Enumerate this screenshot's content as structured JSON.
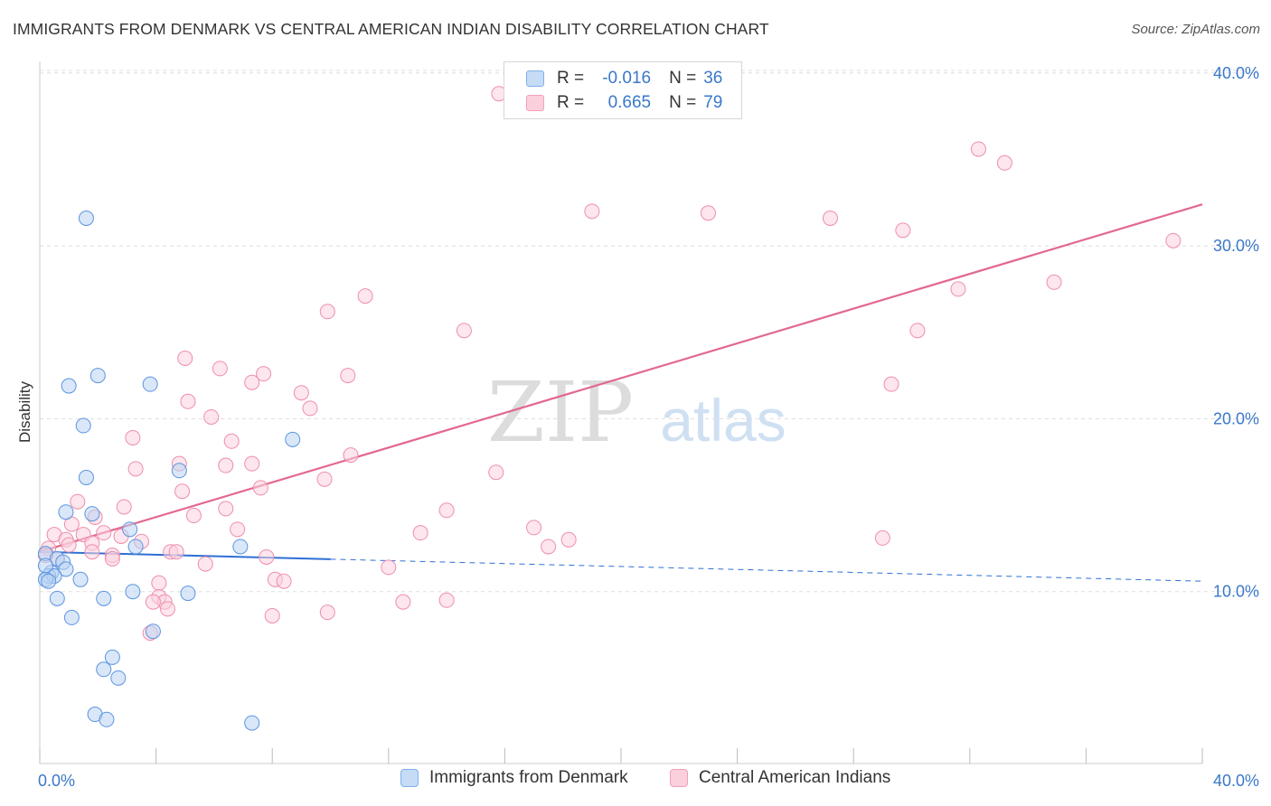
{
  "title": "IMMIGRANTS FROM DENMARK VS CENTRAL AMERICAN INDIAN DISABILITY CORRELATION CHART",
  "source": "Source: ZipAtlas.com",
  "watermark": {
    "zip": "ZIP",
    "atlas": "atlas"
  },
  "legend": {
    "r_label": "R =",
    "n_label": "N =",
    "rows": [
      {
        "r": "-0.016",
        "n": "36",
        "color": "#7fb0ea",
        "fill": "#c5dbf6"
      },
      {
        "r": "0.665",
        "n": "79",
        "color": "#f0a0b8",
        "fill": "#fbd0dc"
      }
    ]
  },
  "bottom_legend": {
    "series1": "Immigrants from Denmark",
    "series2": "Central American Indians"
  },
  "chart_data": {
    "type": "scatter",
    "title": "IMMIGRANTS FROM DENMARK VS CENTRAL AMERICAN INDIAN DISABILITY CORRELATION CHART",
    "xlabel": "",
    "ylabel": "Disability",
    "xlim": [
      0,
      40
    ],
    "ylim": [
      0,
      40
    ],
    "x_tick_labels": [
      "0.0%",
      "40.0%"
    ],
    "y_ticks": [
      10,
      20,
      30,
      40
    ],
    "y_tick_labels": [
      "10.0%",
      "20.0%",
      "30.0%",
      "40.0%"
    ],
    "grid": true,
    "legend_position": "top-center",
    "series": [
      {
        "name": "Immigrants from Denmark",
        "color": "#5b95e0",
        "fill": "#b9d3f3",
        "line_color": "#2e6fd4",
        "trend": {
          "x_start": 0,
          "x_solid_end": 10,
          "x_end": 40,
          "y_start": 12.3,
          "y_end": 10.6
        },
        "points": [
          [
            1.6,
            31.6
          ],
          [
            2.0,
            22.5
          ],
          [
            1.0,
            21.9
          ],
          [
            3.8,
            22.0
          ],
          [
            1.5,
            19.6
          ],
          [
            8.7,
            18.8
          ],
          [
            1.6,
            16.6
          ],
          [
            4.8,
            17.0
          ],
          [
            0.9,
            14.6
          ],
          [
            1.8,
            14.5
          ],
          [
            3.1,
            13.6
          ],
          [
            3.3,
            12.6
          ],
          [
            6.9,
            12.6
          ],
          [
            0.2,
            12.2
          ],
          [
            0.6,
            11.9
          ],
          [
            0.8,
            11.7
          ],
          [
            0.9,
            11.3
          ],
          [
            0.4,
            11.1
          ],
          [
            0.3,
            10.9
          ],
          [
            0.5,
            10.9
          ],
          [
            0.2,
            10.7
          ],
          [
            1.4,
            10.7
          ],
          [
            0.3,
            10.6
          ],
          [
            3.2,
            10.0
          ],
          [
            5.1,
            9.9
          ],
          [
            0.6,
            9.6
          ],
          [
            2.2,
            9.6
          ],
          [
            1.1,
            8.5
          ],
          [
            3.9,
            7.7
          ],
          [
            2.5,
            6.2
          ],
          [
            2.2,
            5.5
          ],
          [
            2.7,
            5.0
          ],
          [
            1.9,
            2.9
          ],
          [
            2.3,
            2.6
          ],
          [
            7.3,
            2.4
          ],
          [
            0.2,
            11.5
          ]
        ]
      },
      {
        "name": "Central American Indians",
        "color": "#ee8eac",
        "fill": "#fbd2de",
        "line_color": "#e2688f",
        "trend": {
          "x_start": 0,
          "x_end": 40,
          "y_start": 12.3,
          "y_end": 32.4
        },
        "points": [
          [
            15.8,
            38.8
          ],
          [
            32.3,
            35.6
          ],
          [
            33.2,
            34.8
          ],
          [
            19.0,
            32.0
          ],
          [
            23.0,
            31.9
          ],
          [
            27.2,
            31.6
          ],
          [
            29.7,
            30.9
          ],
          [
            39.0,
            30.3
          ],
          [
            11.2,
            27.1
          ],
          [
            34.9,
            27.9
          ],
          [
            31.6,
            27.5
          ],
          [
            9.9,
            26.2
          ],
          [
            14.6,
            25.1
          ],
          [
            30.2,
            25.1
          ],
          [
            5.0,
            23.5
          ],
          [
            6.2,
            22.9
          ],
          [
            7.7,
            22.6
          ],
          [
            10.6,
            22.5
          ],
          [
            7.3,
            22.1
          ],
          [
            29.3,
            22.0
          ],
          [
            9.0,
            21.5
          ],
          [
            5.1,
            21.0
          ],
          [
            9.3,
            20.6
          ],
          [
            5.9,
            20.1
          ],
          [
            3.2,
            18.9
          ],
          [
            6.6,
            18.7
          ],
          [
            10.7,
            17.9
          ],
          [
            4.8,
            17.4
          ],
          [
            7.3,
            17.4
          ],
          [
            6.4,
            17.3
          ],
          [
            3.3,
            17.1
          ],
          [
            15.7,
            16.9
          ],
          [
            9.8,
            16.5
          ],
          [
            7.6,
            16.0
          ],
          [
            4.9,
            15.8
          ],
          [
            1.3,
            15.2
          ],
          [
            2.9,
            14.9
          ],
          [
            6.4,
            14.8
          ],
          [
            14.0,
            14.7
          ],
          [
            5.3,
            14.4
          ],
          [
            1.9,
            14.3
          ],
          [
            1.1,
            13.9
          ],
          [
            17.0,
            13.7
          ],
          [
            6.8,
            13.6
          ],
          [
            2.2,
            13.4
          ],
          [
            13.1,
            13.4
          ],
          [
            0.5,
            13.3
          ],
          [
            1.5,
            13.3
          ],
          [
            2.8,
            13.2
          ],
          [
            29.0,
            13.1
          ],
          [
            0.9,
            13.0
          ],
          [
            18.2,
            13.0
          ],
          [
            3.5,
            12.9
          ],
          [
            1.8,
            12.8
          ],
          [
            17.5,
            12.6
          ],
          [
            0.3,
            12.5
          ],
          [
            1.8,
            12.3
          ],
          [
            4.5,
            12.3
          ],
          [
            4.7,
            12.3
          ],
          [
            2.5,
            12.1
          ],
          [
            7.8,
            12.0
          ],
          [
            0.6,
            11.9
          ],
          [
            2.5,
            11.9
          ],
          [
            5.7,
            11.6
          ],
          [
            12.0,
            11.4
          ],
          [
            8.1,
            10.7
          ],
          [
            8.4,
            10.6
          ],
          [
            4.1,
            10.5
          ],
          [
            4.1,
            9.7
          ],
          [
            4.3,
            9.4
          ],
          [
            12.5,
            9.4
          ],
          [
            14.0,
            9.5
          ],
          [
            3.9,
            9.4
          ],
          [
            4.4,
            9.0
          ],
          [
            8.0,
            8.6
          ],
          [
            9.9,
            8.8
          ],
          [
            3.8,
            7.6
          ],
          [
            0.2,
            12.1
          ],
          [
            1.0,
            12.7
          ]
        ]
      }
    ]
  }
}
